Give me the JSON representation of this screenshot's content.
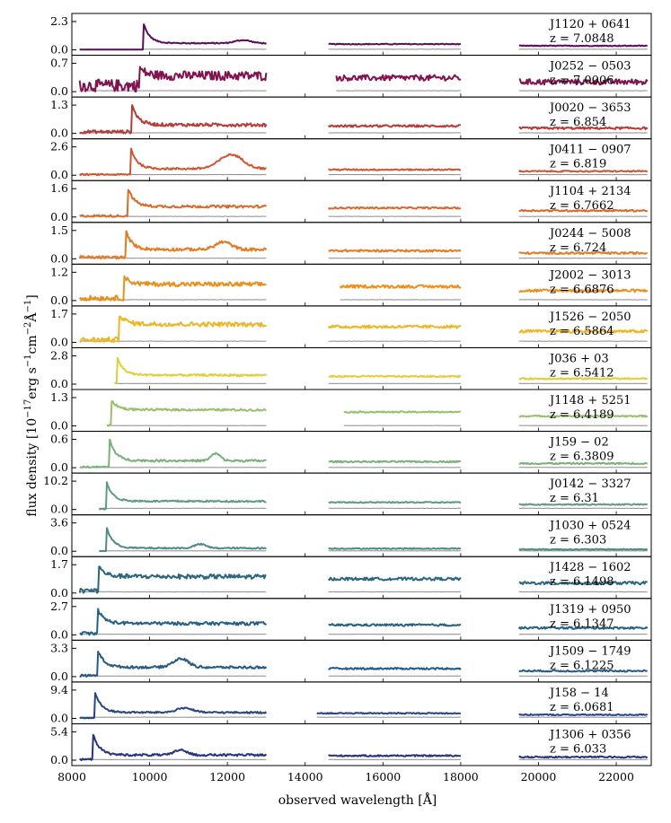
{
  "chart_data": {
    "type": "line",
    "xlabel": "observed wavelength [Å]",
    "ylabel": "flux density [10^-17 erg s^-1 cm^-2 Å^-1]",
    "ylabel_parts": {
      "base": "flux density [10",
      "exp1": "−17",
      "mid1": "erg s",
      "exp2": "−1",
      "mid2": "cm",
      "exp3": "−2",
      "mid3": "Å",
      "exp4": "−1",
      "tail": "]"
    },
    "xlim": [
      8000,
      22900
    ],
    "xticks": [
      8000,
      10000,
      12000,
      14000,
      16000,
      18000,
      20000,
      22000
    ],
    "xtick_labels": [
      "8000",
      "10000",
      "12000",
      "14000",
      "16000",
      "18000",
      "20000",
      "22000"
    ],
    "wavelength_segments": [
      [
        8200,
        13000
      ],
      [
        14600,
        18000
      ],
      [
        19500,
        22800
      ]
    ],
    "panels": [
      {
        "name": "J1120 + 0641",
        "z": "z = 7.0848",
        "ymax": 2.3,
        "ytick_top": "2.3",
        "ytick_zero": "0.0",
        "color": "#5a0f58",
        "lya": 9830,
        "peak": 2.3,
        "continuum": 0.55,
        "noise": 0.0,
        "errlevel": 0.05,
        "seg1_start": 8200,
        "seg2_start": 14600,
        "seg3_start": 19500,
        "features": [
          [
            12400,
            0.25,
            200
          ]
        ]
      },
      {
        "name": "J0252 − 0503",
        "z": "z = 7.0006",
        "ymax": 0.7,
        "ytick_top": "0.7",
        "ytick_zero": "0.0",
        "color": "#82134e",
        "lya": 9730,
        "peak": 0.6,
        "continuum": 0.4,
        "noise": 0.1,
        "errlevel": 0.08,
        "seg1_start": 8200,
        "seg2_start": 14800,
        "seg3_start": 19500,
        "features": [
          [
            15500,
            0.05,
            300
          ]
        ]
      },
      {
        "name": "J0020 − 3653",
        "z": "z = 6.854",
        "ymax": 1.3,
        "ytick_top": "1.3",
        "ytick_zero": "0.0",
        "color": "#b63c3c",
        "lya": 9550,
        "peak": 1.3,
        "continuum": 0.4,
        "noise": 0.05,
        "errlevel": 0.05,
        "seg1_start": 8200,
        "seg2_start": 14600,
        "seg3_start": 19500,
        "features": [
          [
            20600,
            0.15,
            200
          ]
        ]
      },
      {
        "name": "J0411 − 0907",
        "z": "z = 6.819",
        "ymax": 2.6,
        "ytick_top": "2.6",
        "ytick_zero": "0.0",
        "color": "#cf5630",
        "lya": 9510,
        "peak": 2.6,
        "continuum": 0.6,
        "noise": 0.04,
        "errlevel": 0.05,
        "seg1_start": 8200,
        "seg2_start": 14600,
        "seg3_start": 19500,
        "features": [
          [
            12100,
            1.3,
            300
          ]
        ]
      },
      {
        "name": "J1104 + 2134",
        "z": "z = 6.7662",
        "ymax": 1.6,
        "ytick_top": "1.6",
        "ytick_zero": "0.0",
        "color": "#db6a2a",
        "lya": 9450,
        "peak": 1.6,
        "continuum": 0.6,
        "noise": 0.04,
        "errlevel": 0.05,
        "seg1_start": 8200,
        "seg2_start": 14600,
        "seg3_start": 19500,
        "features": []
      },
      {
        "name": "J0244 − 5008",
        "z": "z = 6.724",
        "ymax": 1.5,
        "ytick_top": "1.5",
        "ytick_zero": "0.0",
        "color": "#e57a22",
        "lya": 9400,
        "peak": 1.4,
        "continuum": 0.5,
        "noise": 0.05,
        "errlevel": 0.05,
        "seg1_start": 8200,
        "seg2_start": 14600,
        "seg3_start": 19500,
        "features": [
          [
            11900,
            0.4,
            200
          ]
        ]
      },
      {
        "name": "J2002 − 3013",
        "z": "z = 6.6876",
        "ymax": 1.2,
        "ytick_top": "1.2",
        "ytick_zero": "0.0",
        "color": "#ec8f1c",
        "lya": 9350,
        "peak": 1.0,
        "continuum": 0.7,
        "noise": 0.07,
        "errlevel": 0.07,
        "seg1_start": 8200,
        "seg2_start": 14900,
        "seg3_start": 19500,
        "features": []
      },
      {
        "name": "J1526 − 2050",
        "z": "z = 6.5864",
        "ymax": 1.7,
        "ytick_top": "1.7",
        "ytick_zero": "0.0",
        "color": "#efb624",
        "lya": 9220,
        "peak": 1.7,
        "continuum": 1.1,
        "noise": 0.1,
        "errlevel": 0.1,
        "seg1_start": 8200,
        "seg2_start": 14600,
        "seg3_start": 19500,
        "features": []
      },
      {
        "name": "J036 + 03",
        "z": "z = 6.5412",
        "ymax": 2.8,
        "ytick_top": "2.8",
        "ytick_zero": "0.0",
        "color": "#e2cf33",
        "lya": 9170,
        "peak": 2.6,
        "continuum": 0.9,
        "noise": 0.05,
        "errlevel": 0.05,
        "seg1_start": 9100,
        "seg2_start": 14600,
        "seg3_start": 19500,
        "features": []
      },
      {
        "name": "J1148 + 5251",
        "z": "z = 6.4189",
        "ymax": 1.3,
        "ytick_top": "1.3",
        "ytick_zero": "0.0",
        "color": "#98c06a",
        "lya": 9010,
        "peak": 1.2,
        "continuum": 0.75,
        "noise": 0.02,
        "errlevel": 0.03,
        "seg1_start": 8900,
        "seg2_start": 15000,
        "seg3_start": 19500,
        "features": []
      },
      {
        "name": "J159 − 02",
        "z": "z = 6.3809",
        "ymax": 0.6,
        "ytick_top": "0.6",
        "ytick_zero": "0.0",
        "color": "#7bb07a",
        "lya": 8970,
        "peak": 0.6,
        "continuum": 0.15,
        "noise": 0.01,
        "errlevel": 0.02,
        "seg1_start": 8200,
        "seg2_start": 14600,
        "seg3_start": 19500,
        "features": [
          [
            11700,
            0.15,
            120
          ]
        ]
      },
      {
        "name": "J0142 − 3327",
        "z": "z = 6.31",
        "ymax": 10.2,
        "ytick_top": "10.2",
        "ytick_zero": "0.0",
        "color": "#5e9c80",
        "lya": 8890,
        "peak": 10.0,
        "continuum": 3.0,
        "noise": 0.1,
        "errlevel": 0.1,
        "seg1_start": 8700,
        "seg2_start": 14600,
        "seg3_start": 19500,
        "features": []
      },
      {
        "name": "J1030 + 0524",
        "z": "z = 6.303",
        "ymax": 3.6,
        "ytick_top": "3.6",
        "ytick_zero": "0.0",
        "color": "#4e8a86",
        "lya": 8880,
        "peak": 3.3,
        "continuum": 0.4,
        "noise": 0.02,
        "errlevel": 0.03,
        "seg1_start": 8700,
        "seg2_start": 14600,
        "seg3_start": 19500,
        "features": [
          [
            11300,
            0.5,
            150
          ]
        ]
      },
      {
        "name": "J1428 − 1602",
        "z": "z = 6.1498",
        "ymax": 1.7,
        "ytick_top": "1.7",
        "ytick_zero": "0.0",
        "color": "#2c6780",
        "lya": 8690,
        "peak": 1.6,
        "continuum": 1.0,
        "noise": 0.1,
        "errlevel": 0.1,
        "seg1_start": 8200,
        "seg2_start": 14600,
        "seg3_start": 19500,
        "features": []
      },
      {
        "name": "J1319 + 0950",
        "z": "z = 6.1347",
        "ymax": 2.7,
        "ytick_top": "2.7",
        "ytick_zero": "0.0",
        "color": "#276084",
        "lya": 8670,
        "peak": 2.4,
        "continuum": 1.1,
        "noise": 0.1,
        "errlevel": 0.05,
        "seg1_start": 8200,
        "seg2_start": 14600,
        "seg3_start": 19500,
        "features": []
      },
      {
        "name": "J1509 − 1749",
        "z": "z = 6.1225",
        "ymax": 3.3,
        "ytick_top": "3.3",
        "ytick_zero": "0.0",
        "color": "#275a85",
        "lya": 8660,
        "peak": 3.2,
        "continuum": 1.1,
        "noise": 0.08,
        "errlevel": 0.05,
        "seg1_start": 8200,
        "seg2_start": 14600,
        "seg3_start": 19500,
        "features": [
          [
            10800,
            1.0,
            200
          ]
        ]
      },
      {
        "name": "J158 − 14",
        "z": "z = 6.0681",
        "ymax": 9.4,
        "ytick_top": "9.4",
        "ytick_zero": "0.0",
        "color": "#2a4583",
        "lya": 8590,
        "peak": 9.0,
        "continuum": 2.0,
        "noise": 0.1,
        "errlevel": 0.1,
        "seg1_start": 8200,
        "seg2_start": 14300,
        "seg3_start": 19500,
        "features": [
          [
            10900,
            1.5,
            200
          ]
        ]
      },
      {
        "name": "J1306 + 0356",
        "z": "z = 6.033",
        "ymax": 5.4,
        "ytick_top": "5.4",
        "ytick_zero": "0.0",
        "color": "#283479",
        "lya": 8550,
        "peak": 5.0,
        "continuum": 1.0,
        "noise": 0.1,
        "errlevel": 0.05,
        "seg1_start": 8200,
        "seg2_start": 14600,
        "seg3_start": 19500,
        "features": [
          [
            10800,
            1.0,
            150
          ]
        ]
      }
    ]
  }
}
